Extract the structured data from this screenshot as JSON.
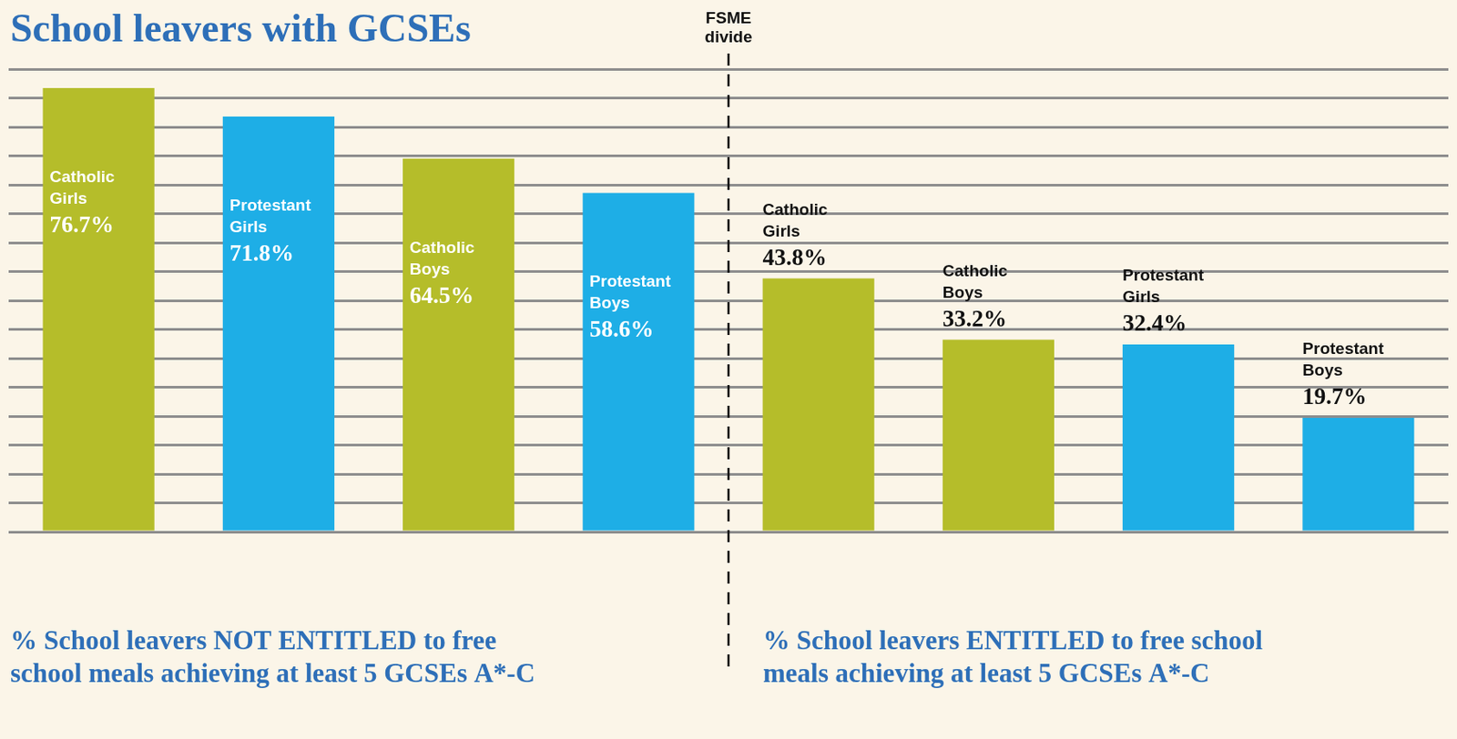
{
  "chart_data": {
    "type": "bar",
    "title": "School leavers with GCSEs",
    "categories": [
      "Catholic Girls",
      "Protestant Girls",
      "Catholic Boys",
      "Protestant Boys",
      "Catholic Girls",
      "Catholic Boys",
      "Protestant Girls",
      "Protestant Boys"
    ],
    "values": [
      76.7,
      71.8,
      64.5,
      58.6,
      43.8,
      33.2,
      32.4,
      19.7
    ],
    "value_labels": [
      "76.7%",
      "71.8%",
      "64.5%",
      "58.6%",
      "43.8%",
      "33.2%",
      "32.4%",
      "19.7%"
    ],
    "colors": [
      "#b5bd2a",
      "#1eaee6",
      "#b5bd2a",
      "#1eaee6",
      "#b5bd2a",
      "#b5bd2a",
      "#1eaee6",
      "#1eaee6"
    ],
    "ylim": [
      0,
      80
    ],
    "yticks": [
      0,
      5,
      10,
      15,
      20,
      25,
      30,
      35,
      40,
      45,
      50,
      55,
      60,
      65,
      70,
      75,
      80
    ],
    "grid": true,
    "tick_labels": false,
    "data_labels": true,
    "annotations": [
      "FSME divide"
    ],
    "groups": [
      {
        "label": "% School leavers NOT ENTITLED to free school meals achieving at least 5 GCSEs A*-C",
        "count": 4
      },
      {
        "label": "% School leavers ENTITLED to free school meals achieving at least 5 GCSEs A*-C",
        "count": 4
      }
    ]
  }
}
